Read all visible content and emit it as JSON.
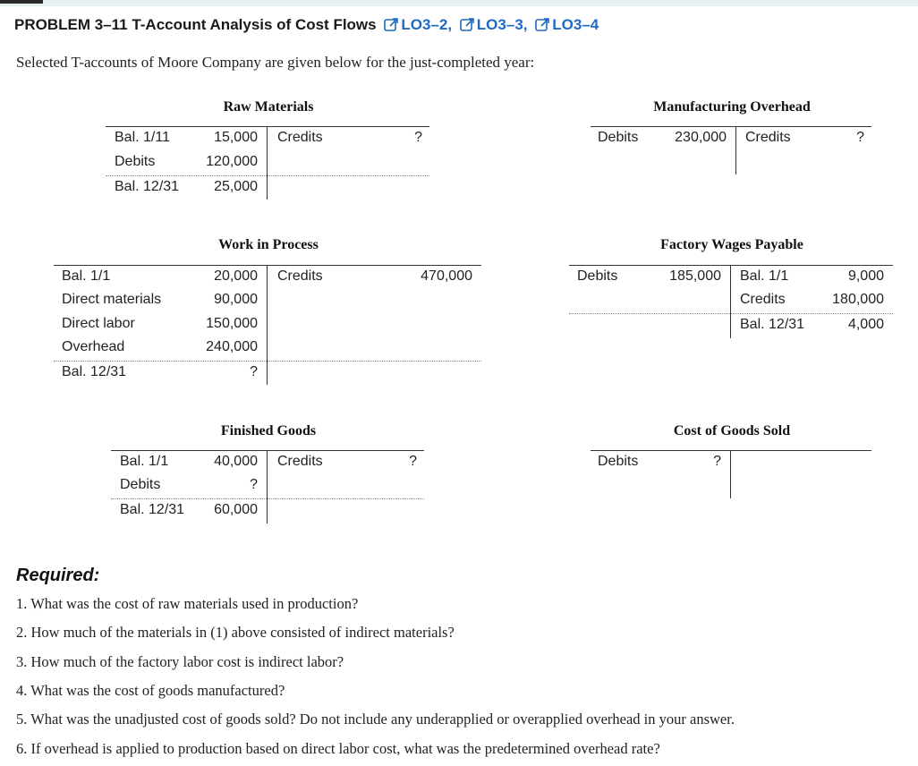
{
  "header": {
    "title": "PROBLEM 3–11 T-Account Analysis of Cost Flows",
    "learning_objectives": [
      "LO3–2,",
      "LO3–3,",
      "LO3–4"
    ]
  },
  "intro": "Selected T-accounts of Moore Company are given below for the just-completed year:",
  "accounts": {
    "raw_materials": {
      "title": "Raw Materials",
      "debits": [
        [
          "Bal. 1/11",
          "15,000"
        ],
        [
          "Debits",
          "120,000"
        ],
        [
          "Bal. 12/31",
          "25,000"
        ]
      ],
      "credit": [
        "Credits",
        "?"
      ]
    },
    "manufacturing_overhead": {
      "title": "Manufacturing Overhead",
      "debit": [
        "Debits",
        "230,000"
      ],
      "credit": [
        "Credits",
        "?"
      ]
    },
    "work_in_process": {
      "title": "Work in Process",
      "debits": [
        [
          "Bal. 1/1",
          "20,000"
        ],
        [
          "Direct materials",
          "90,000"
        ],
        [
          "Direct labor",
          "150,000"
        ],
        [
          "Overhead",
          "240,000"
        ],
        [
          "Bal. 12/31",
          "?"
        ]
      ],
      "credit": [
        "Credits",
        "470,000"
      ]
    },
    "factory_wages_payable": {
      "title": "Factory Wages Payable",
      "debit": [
        "Debits",
        "185,000"
      ],
      "credits": [
        [
          "Bal. 1/1",
          "9,000"
        ],
        [
          "Credits",
          "180,000"
        ],
        [
          "Bal. 12/31",
          "4,000"
        ]
      ]
    },
    "finished_goods": {
      "title": "Finished Goods",
      "debits": [
        [
          "Bal. 1/1",
          "40,000"
        ],
        [
          "Debits",
          "?"
        ],
        [
          "Bal. 12/31",
          "60,000"
        ]
      ],
      "credit": [
        "Credits",
        "?"
      ]
    },
    "cost_of_goods_sold": {
      "title": "Cost of Goods Sold",
      "debit": [
        "Debits",
        "?"
      ]
    }
  },
  "required": {
    "label": "Required:",
    "questions": [
      "1. What was the cost of raw materials used in production?",
      "2. How much of the materials in (1) above consisted of indirect materials?",
      "3. How much of the factory labor cost is indirect labor?",
      "4. What was the cost of goods manufactured?",
      "5. What was the unadjusted cost of goods sold? Do not include any underapplied or overapplied overhead in your answer.",
      "6. If overhead is applied to production based on direct labor cost, what was the predetermined overhead rate?"
    ]
  }
}
